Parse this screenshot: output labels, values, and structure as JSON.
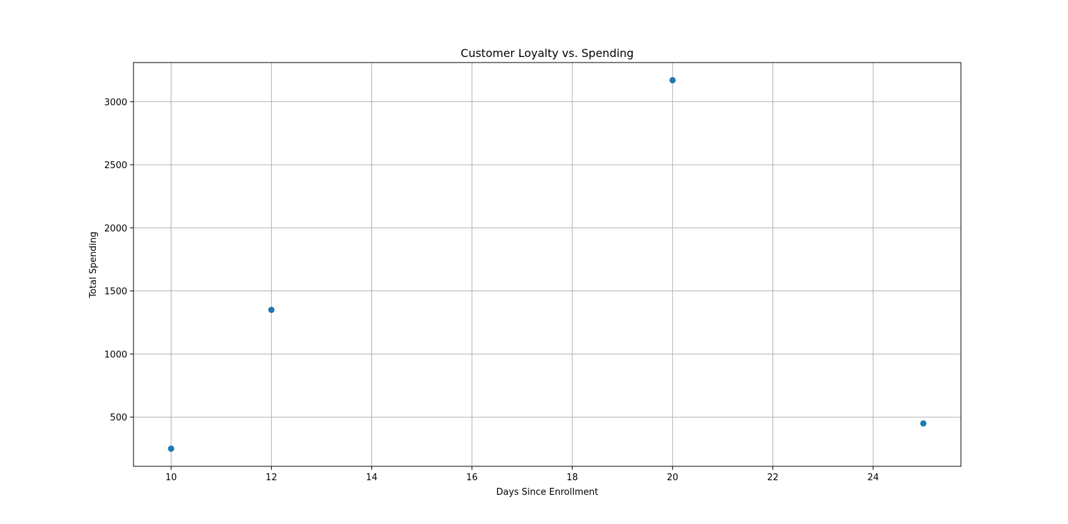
{
  "chart_data": {
    "type": "scatter",
    "title": "Customer Loyalty vs. Spending",
    "xlabel": "Days Since Enrollment",
    "ylabel": "Total Spending",
    "xlim": [
      9.25,
      25.75
    ],
    "ylim": [
      110,
      3310
    ],
    "xticks": [
      10,
      12,
      14,
      16,
      18,
      20,
      22,
      24
    ],
    "yticks": [
      500,
      1000,
      1500,
      2000,
      2500,
      3000
    ],
    "grid": true,
    "legend": "none",
    "series": [
      {
        "color": "#1f77b4",
        "points": [
          {
            "x": 10,
            "y": 250
          },
          {
            "x": 12,
            "y": 1350
          },
          {
            "x": 20,
            "y": 3170
          },
          {
            "x": 25,
            "y": 450
          }
        ]
      }
    ]
  }
}
